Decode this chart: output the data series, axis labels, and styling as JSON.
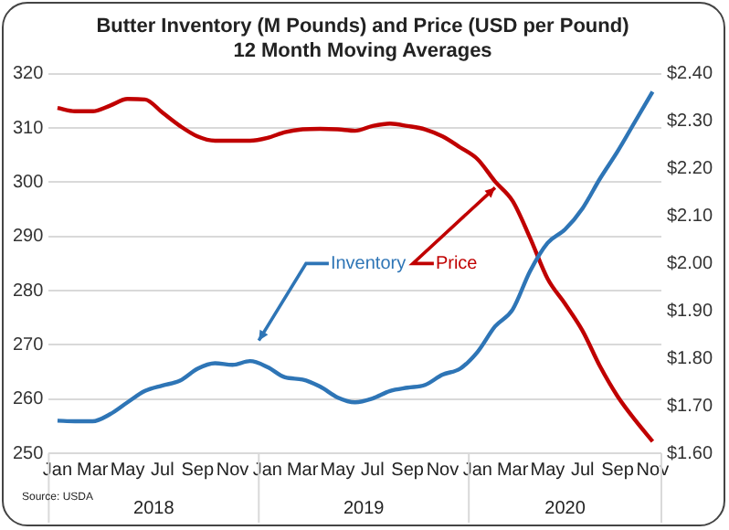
{
  "chart_data": {
    "type": "line",
    "title": "Butter Inventory (M Pounds) and Price (USD per Pound)",
    "subtitle": "12 Month Moving Averages",
    "categories": [
      "Jan",
      null,
      "Mar",
      null,
      "May",
      null,
      "Jul",
      null,
      "Sep",
      null,
      "Nov",
      null,
      "Jan",
      null,
      "Mar",
      null,
      "May",
      null,
      "Jul",
      null,
      "Sep",
      null,
      "Nov",
      null,
      "Jan",
      null,
      "Mar",
      null,
      "May",
      null,
      "Jul",
      null,
      "Sep",
      null,
      "Nov"
    ],
    "series": [
      {
        "name": "Inventory",
        "color": "#2e75b6",
        "values": [
          256,
          255.9,
          255.9,
          257.2,
          259.4,
          261.5,
          262.5,
          263.4,
          265.6,
          266.6,
          266.3,
          267,
          265.9,
          264,
          263.6,
          262.3,
          260.3,
          259.4,
          260.1,
          261.5,
          262.1,
          262.6,
          264.5,
          265.6,
          268.7,
          273.4,
          276.5,
          283.6,
          288.8,
          291.3,
          295.2,
          300.7,
          305.7,
          311.2,
          316.7
        ]
      },
      {
        "name": "Price",
        "color": "#c00000",
        "axis": "y2",
        "values": [
          2.328,
          2.321,
          2.321,
          2.333,
          2.347,
          2.346,
          2.318,
          2.29,
          2.268,
          2.259,
          2.259,
          2.259,
          2.265,
          2.277,
          2.283,
          2.284,
          2.283,
          2.28,
          2.29,
          2.295,
          2.29,
          2.283,
          2.268,
          2.245,
          2.22,
          2.173,
          2.132,
          2.054,
          1.968,
          1.915,
          1.858,
          1.783,
          1.72,
          1.67,
          1.625
        ]
      }
    ],
    "ylim": [
      250,
      320
    ],
    "yticks": [
      250,
      260,
      270,
      280,
      290,
      300,
      310,
      320
    ],
    "y2lim": [
      1.6,
      2.4
    ],
    "y2ticks": [
      {
        "value": 1.6,
        "label": "$1.60"
      },
      {
        "value": 1.7,
        "label": "$1.70"
      },
      {
        "value": 1.8,
        "label": "$1.80"
      },
      {
        "value": 1.9,
        "label": "$1.90"
      },
      {
        "value": 2.0,
        "label": "$2.00"
      },
      {
        "value": 2.1,
        "label": "$2.10"
      },
      {
        "value": 2.2,
        "label": "$2.20"
      },
      {
        "value": 2.3,
        "label": "$2.30"
      },
      {
        "value": 2.4,
        "label": "$2.40"
      }
    ],
    "annotations": [
      "2018",
      "2019",
      "2020",
      "Source: USDA"
    ],
    "grid": "y",
    "legend": false,
    "marker": "none",
    "line_style": "solid"
  }
}
